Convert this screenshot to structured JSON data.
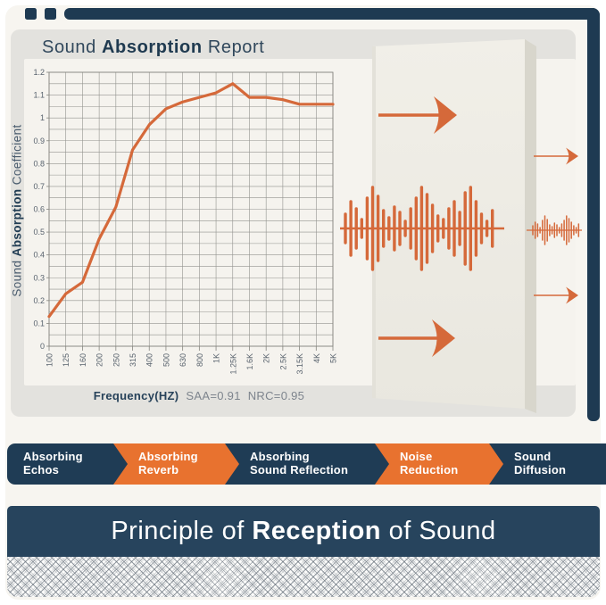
{
  "colors": {
    "navy": "#1f3c55",
    "navy_banner": "#27445d",
    "orange": "#e8722f",
    "curve_orange": "#d5693a",
    "card_bg": "#e3e2de",
    "inner_bg": "#f5f3ee",
    "page_bg": "#f7f5f0",
    "panel_face": "#efede5",
    "panel_side": "#d8d6cc",
    "grid_line": "#93938f",
    "tick_text": "#59636e",
    "muted_text": "#7d848d"
  },
  "report": {
    "title_parts": [
      {
        "text": "Sound ",
        "bold": false
      },
      {
        "text": "Absorption",
        "bold": true
      },
      {
        "text": " Report",
        "bold": false
      }
    ],
    "ylabel_parts": [
      {
        "text": "Sound ",
        "bold": false
      },
      {
        "text": "Absorption",
        "bold": true
      },
      {
        "text": " Coefficient",
        "bold": false
      }
    ],
    "stats": {
      "freq_label": "Frequency(HZ)",
      "saa": "SAA=0.91",
      "nrc": "NRC=0.95"
    }
  },
  "chart_data": {
    "type": "line",
    "title": "Sound Absorption Report",
    "xlabel": "Frequency(HZ)",
    "ylabel": "Sound Absorption Coefficient",
    "categories": [
      "100",
      "125",
      "160",
      "200",
      "250",
      "315",
      "400",
      "500",
      "630",
      "800",
      "1K",
      "1.25K",
      "1.6K",
      "2K",
      "2.5K",
      "3.15K",
      "4K",
      "5K"
    ],
    "values": [
      0.13,
      0.23,
      0.28,
      0.47,
      0.61,
      0.86,
      0.97,
      1.04,
      1.07,
      1.09,
      1.11,
      1.15,
      1.09,
      1.09,
      1.08,
      1.06,
      1.06,
      1.06
    ],
    "ylim": [
      0,
      1.2
    ],
    "ytick_step": 0.1,
    "y_minor_step": 0.05,
    "grid": true,
    "legend": false,
    "annotations": [
      "SAA=0.91",
      "NRC=0.95"
    ],
    "line_color": "#d5693a"
  },
  "process_badges": [
    {
      "lines": [
        "Absorbing",
        "Echos"
      ],
      "color": "navy"
    },
    {
      "lines": [
        "Absorbing",
        "Reverb"
      ],
      "color": "orange"
    },
    {
      "lines": [
        "Absorbing",
        "Sound Reflection"
      ],
      "color": "navy"
    },
    {
      "lines": [
        "Noise",
        "Reduction"
      ],
      "color": "orange"
    },
    {
      "lines": [
        "Sound",
        "Diffusion"
      ],
      "color": "navy"
    }
  ],
  "banner": {
    "parts": [
      {
        "text": "Principle of ",
        "bold": false
      },
      {
        "text": "Reception",
        "bold": true
      },
      {
        "text": " of Sound",
        "bold": false
      }
    ]
  },
  "icons": {
    "arrows": "right-arrow",
    "large_wave": "sound-wave-bars",
    "small_wave": "sound-wave-bars-small",
    "panel": "acoustic-panel-3d"
  }
}
